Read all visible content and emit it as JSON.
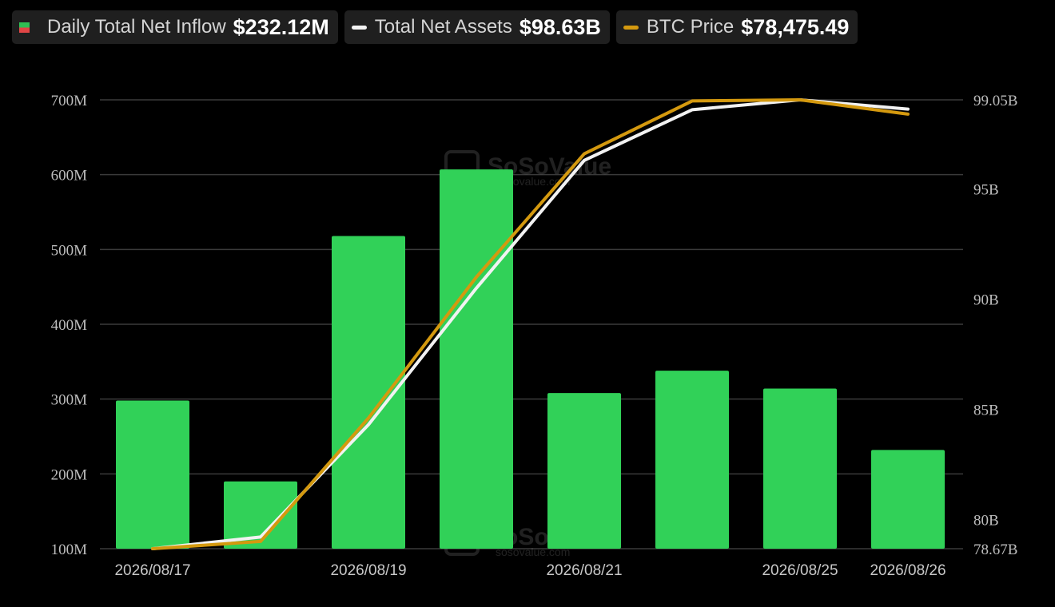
{
  "legend": [
    {
      "label": "Daily Total Net Inflow",
      "value": "$232.12M",
      "marker": "square",
      "colors": [
        "#2fbf53",
        "#e04545"
      ]
    },
    {
      "label": "Total Net Assets",
      "value": "$98.63B",
      "marker": "line",
      "color": "#f2f2f2"
    },
    {
      "label": "BTC Price",
      "value": "$78,475.49",
      "marker": "line",
      "color": "#d4990f"
    }
  ],
  "watermark": {
    "brand": "SoSoValue",
    "site": "sosovalue.com"
  },
  "colors": {
    "background": "#000000",
    "bar": "#31d158",
    "grid": "#3a3a3a",
    "assets_line": "#f2f2f2",
    "price_line": "#d4990f"
  },
  "chart_data": {
    "type": "bar",
    "x": [
      "2026/08/17",
      "2026/08/18",
      "2026/08/19",
      "2026/08/20",
      "2026/08/21",
      "2026/08/24",
      "2026/08/25",
      "2026/08/26"
    ],
    "x_tick_labels": [
      "2026/08/17",
      "2026/08/19",
      "2026/08/21",
      "2026/08/25",
      "2026/08/26"
    ],
    "left_axis": {
      "ticks": [
        "100M",
        "200M",
        "300M",
        "400M",
        "500M",
        "600M",
        "700M"
      ],
      "ylim": [
        100,
        700
      ],
      "unit": "M"
    },
    "right_axis": {
      "ticks": [
        "78.67B",
        "80B",
        "85B",
        "90B",
        "95B",
        "99.05B"
      ],
      "ylim": [
        78.67,
        99.05
      ],
      "unit": "B"
    },
    "grid": true,
    "series": [
      {
        "name": "Daily Total Net Inflow",
        "type": "bar",
        "axis": "left",
        "values": [
          298,
          190,
          518,
          607,
          308,
          338,
          314,
          232
        ]
      },
      {
        "name": "Total Net Assets",
        "type": "line",
        "axis": "right",
        "values": [
          78.67,
          79.2,
          84.3,
          90.5,
          96.3,
          98.6,
          99.05,
          98.63
        ]
      },
      {
        "name": "BTC Price",
        "type": "line",
        "axis": "right",
        "values": [
          78.67,
          79.0,
          84.6,
          91.0,
          96.6,
          99.0,
          99.05,
          98.4
        ]
      }
    ]
  }
}
